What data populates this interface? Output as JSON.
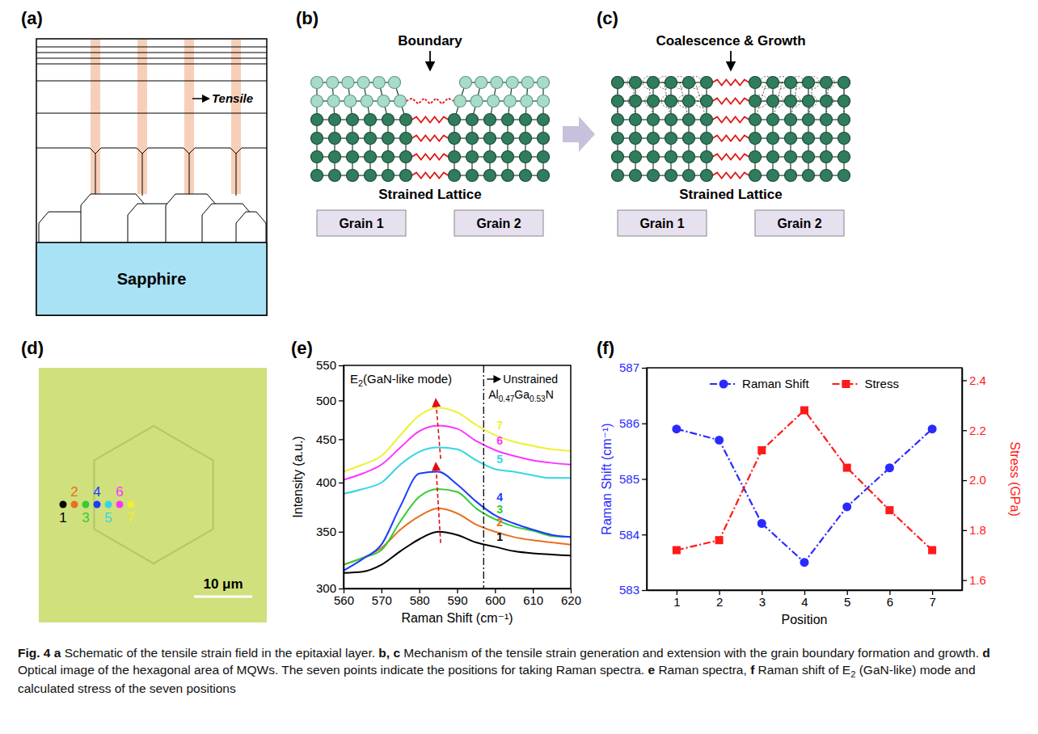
{
  "panel_labels": {
    "a": "(a)",
    "b": "(b)",
    "c": "(c)",
    "d": "(d)",
    "e": "(e)",
    "f": "(f)"
  },
  "diagrams": {
    "a": {
      "substrate": "Sapphire",
      "annotation": "Tensile"
    },
    "b": {
      "title": "Boundary",
      "lattice_label": "Strained Lattice",
      "grains": [
        "Grain 1",
        "Grain 2"
      ]
    },
    "c": {
      "title": "Coalescence & Growth",
      "lattice_label": "Strained Lattice",
      "grains": [
        "Grain 1",
        "Grain 2"
      ]
    },
    "d": {
      "points": [
        {
          "label": "1",
          "color": "#000000"
        },
        {
          "label": "2",
          "color": "#e87020"
        },
        {
          "label": "3",
          "color": "#33cc33"
        },
        {
          "label": "4",
          "color": "#1a3cff"
        },
        {
          "label": "5",
          "color": "#33d6e6"
        },
        {
          "label": "6",
          "color": "#ff33ff"
        },
        {
          "label": "7",
          "color": "#f0f030"
        }
      ],
      "scale_bar": "10 μm"
    }
  },
  "chart_data": [
    {
      "type": "line",
      "xlabel": "Raman Shift (cm⁻¹)",
      "ylabel": "Intensity (a.u.)",
      "x": [
        560,
        565,
        570,
        575,
        580,
        585,
        590,
        595,
        600,
        605,
        610,
        615,
        620
      ],
      "series": [
        {
          "name": "1",
          "color": "#000000",
          "values": [
            313,
            314,
            320,
            332,
            343,
            350,
            347,
            340,
            336,
            332,
            330,
            329,
            328
          ]
        },
        {
          "name": "2",
          "color": "#e87020",
          "values": [
            320,
            326,
            335,
            352,
            365,
            373,
            368,
            357,
            350,
            345,
            342,
            340,
            338
          ]
        },
        {
          "name": "3",
          "color": "#33cc33",
          "values": [
            320,
            326,
            333,
            360,
            385,
            393,
            390,
            373,
            362,
            355,
            351,
            346,
            345
          ]
        },
        {
          "name": "4",
          "color": "#1a3cff",
          "values": [
            315,
            325,
            338,
            375,
            410,
            412,
            398,
            380,
            366,
            358,
            352,
            347,
            345
          ]
        },
        {
          "name": "5",
          "color": "#33d6e6",
          "values": [
            388,
            393,
            400,
            420,
            435,
            440,
            438,
            425,
            415,
            412,
            408,
            405,
            405
          ]
        },
        {
          "name": "6",
          "color": "#ff33ff",
          "values": [
            403,
            410,
            420,
            440,
            460,
            467,
            463,
            448,
            437,
            430,
            425,
            422,
            420
          ]
        },
        {
          "name": "7",
          "color": "#f0f030",
          "values": [
            412,
            420,
            430,
            455,
            480,
            490,
            484,
            468,
            455,
            447,
            442,
            438,
            436
          ]
        }
      ],
      "xlim": [
        560,
        620
      ],
      "xticks": [
        560,
        570,
        580,
        590,
        600,
        610,
        620
      ],
      "ylim": [
        300,
        550
      ],
      "yticks": [
        300,
        350,
        400,
        450,
        500,
        550
      ],
      "log": "y",
      "annotations": [
        {
          "text": "E2(GaN-like mode)"
        }
      ],
      "reference_lines": [
        {
          "x": 597,
          "label": "Unstrained Al0.47Ga0.53N",
          "line_style": "dashdot"
        }
      ]
    },
    {
      "type": "line",
      "xlabel": "Position",
      "ylabel": "Raman Shift (cm⁻¹)",
      "y2label": "Stress (GPa)",
      "x": [
        1,
        2,
        3,
        4,
        5,
        6,
        7
      ],
      "series": [
        {
          "name": "Raman Shift",
          "color": "#2a2aff",
          "values": [
            585.9,
            585.7,
            584.2,
            583.5,
            584.5,
            585.2,
            585.9
          ],
          "marker": "circle",
          "line_style": "dashdot"
        },
        {
          "name": "Stress",
          "color": "#ff1a1a",
          "values": [
            1.72,
            1.76,
            2.12,
            2.28,
            2.05,
            1.88,
            1.72
          ],
          "axis": "y2",
          "marker": "square",
          "line_style": "dashdot"
        }
      ],
      "xlim": [
        0.3,
        7.7
      ],
      "xticks": [
        1,
        2,
        3,
        4,
        5,
        6,
        7
      ],
      "ylim": [
        583,
        587
      ],
      "yticks": [
        583,
        584,
        585,
        586,
        587
      ],
      "y2lim": [
        1.56,
        2.45
      ],
      "y2ticks": [
        1.6,
        1.8,
        {
          "value": 2,
          "label": "2.0"
        },
        2.2,
        2.4
      ],
      "legend": "top"
    }
  ],
  "caption": {
    "figure": "Fig. 4",
    "items": [
      {
        "keys": "a",
        "text": "Schematic of the tensile strain field in the epitaxial layer."
      },
      {
        "keys": "b, c",
        "text": "Mechanism of the tensile strain generation and extension with the grain boundary formation and growth."
      },
      {
        "keys": "d",
        "text": "Optical image of the hexagonal area of MQWs. The seven points indicate the positions for taking Raman spectra."
      },
      {
        "keys": "e",
        "text": "Raman spectra,"
      },
      {
        "keys": "f",
        "text": "Raman shift of E2 (GaN-like) mode and calculated stress of the seven positions"
      }
    ]
  }
}
